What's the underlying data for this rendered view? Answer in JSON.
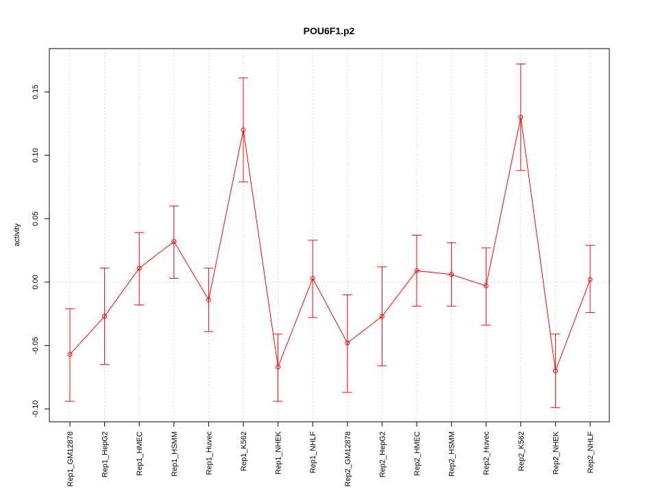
{
  "chart_data": {
    "type": "line",
    "title": "POU6F1.p2",
    "xlabel": "",
    "ylabel": "activity",
    "ylim": [
      -0.11,
      0.185
    ],
    "yticks": [
      -0.1,
      -0.05,
      0.0,
      0.05,
      0.1,
      0.15
    ],
    "ytick_labels": [
      "-0.10",
      "-0.05",
      "0.00",
      "0.05",
      "0.10",
      "0.15"
    ],
    "categories": [
      "Rep1_GM12878",
      "Rep1_HepG2",
      "Rep1_HMEC",
      "Rep1_HSMM",
      "Rep1_Huvec",
      "Rep1_K562",
      "Rep1_NHEK",
      "Rep1_NHLF",
      "Rep2_GM12878",
      "Rep2_HepG2",
      "Rep2_HMEC",
      "Rep2_HSMM",
      "Rep2_Huvec",
      "Rep2_K562",
      "Rep2_NHEK",
      "Rep2_NHLF"
    ],
    "values": [
      -0.057,
      -0.027,
      0.011,
      0.032,
      -0.014,
      0.12,
      -0.067,
      0.003,
      -0.048,
      -0.027,
      0.009,
      0.006,
      -0.003,
      0.13,
      -0.07,
      0.002
    ],
    "error_upper": [
      -0.021,
      0.011,
      0.039,
      0.06,
      0.011,
      0.161,
      -0.041,
      0.033,
      -0.01,
      0.012,
      0.037,
      0.031,
      0.027,
      0.172,
      -0.041,
      0.029
    ],
    "error_lower": [
      -0.094,
      -0.065,
      -0.018,
      0.003,
      -0.039,
      0.079,
      -0.094,
      -0.028,
      -0.087,
      -0.066,
      -0.019,
      -0.019,
      -0.034,
      0.088,
      -0.099,
      -0.024
    ],
    "grid": true,
    "color": "#ff0000"
  }
}
